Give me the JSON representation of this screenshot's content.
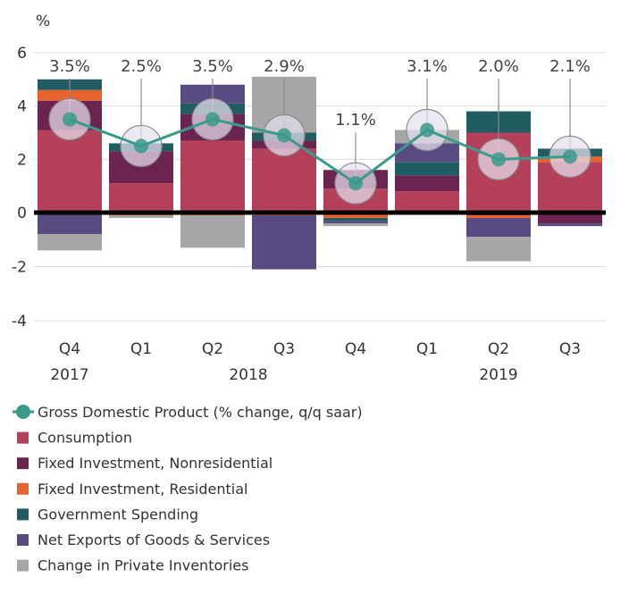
{
  "chart_data": {
    "type": "bar",
    "stacked": true,
    "ylabel": "%",
    "ylim": [
      -4,
      6
    ],
    "yticks": [
      6,
      4,
      2,
      0,
      -2,
      -4
    ],
    "grid": "horizontal",
    "legend_placement": "bottom",
    "categories": [
      "Q4",
      "Q1",
      "Q2",
      "Q3",
      "Q4",
      "Q1",
      "Q2",
      "Q3"
    ],
    "year_labels": [
      {
        "label": "2017",
        "at_index": 0
      },
      {
        "label": "2018",
        "at_index": 2.5
      },
      {
        "label": "2019",
        "at_index": 6
      }
    ],
    "series": [
      {
        "name": "Consumption",
        "color": "#b5405a",
        "values": [
          3.1,
          1.1,
          2.7,
          2.4,
          0.9,
          0.8,
          3.0,
          1.9
        ]
      },
      {
        "name": "Fixed Investment, Nonresidential",
        "color": "#6b2350",
        "values": [
          1.1,
          1.2,
          1.0,
          0.3,
          0.7,
          0.6,
          -0.1,
          -0.4
        ]
      },
      {
        "name": "Fixed Investment, Residential",
        "color": "#e8632c",
        "values": [
          0.4,
          -0.1,
          -0.1,
          -0.1,
          -0.2,
          0.0,
          -0.1,
          0.2
        ]
      },
      {
        "name": "Government Spending",
        "color": "#215c62",
        "values": [
          0.4,
          0.3,
          0.4,
          0.3,
          -0.1,
          0.5,
          0.8,
          0.3
        ]
      },
      {
        "name": "Net Exports of Goods & Services",
        "color": "#5a4a82",
        "values": [
          -0.8,
          0.0,
          0.7,
          -2.0,
          -0.1,
          0.7,
          -0.7,
          -0.1
        ]
      },
      {
        "name": "Change in Private Inventories",
        "color": "#a6a6a6",
        "values": [
          -0.6,
          -0.1,
          -1.2,
          2.1,
          -0.1,
          0.5,
          -0.9,
          0.0
        ]
      }
    ],
    "gdp": {
      "name": "Gross Domestic Product (% change, q/q saar)",
      "color": "#3a9a8c",
      "values": [
        3.5,
        2.5,
        3.5,
        2.9,
        1.1,
        3.1,
        2.0,
        2.1
      ],
      "labels": [
        "3.5%",
        "2.5%",
        "3.5%",
        "2.9%",
        "1.1%",
        "3.1%",
        "2.0%",
        "2.1%"
      ]
    }
  }
}
